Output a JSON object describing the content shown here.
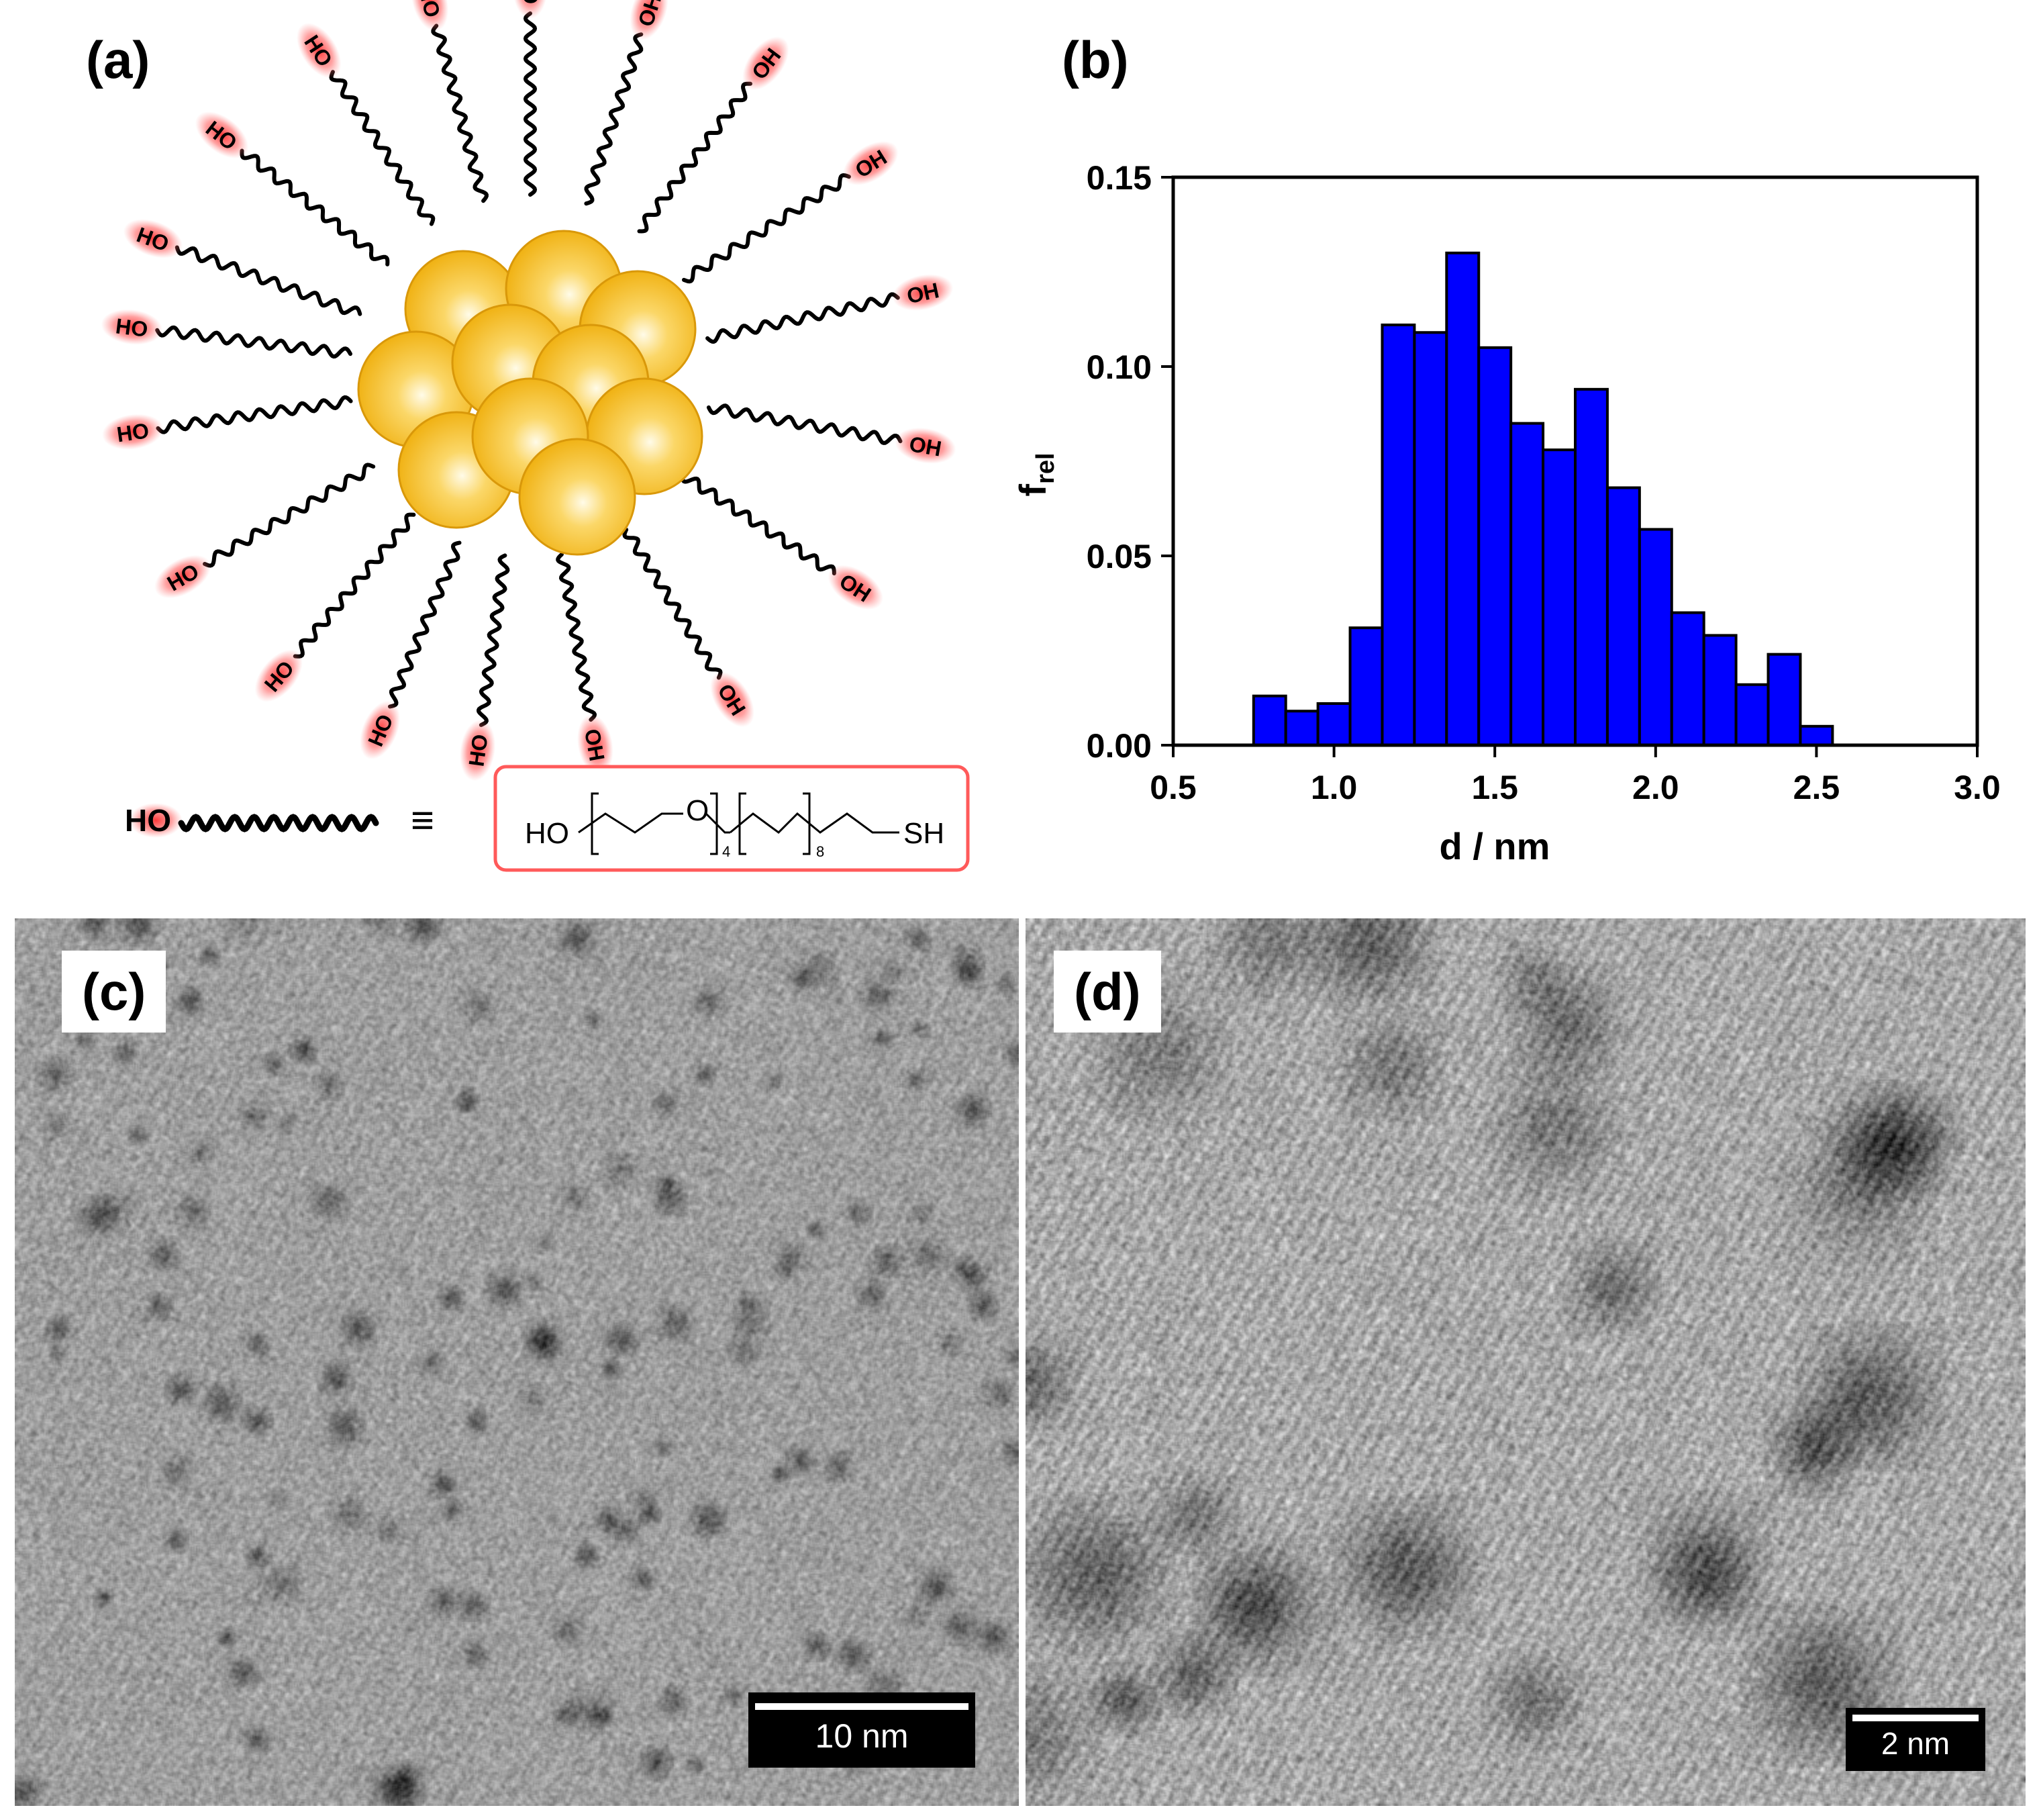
{
  "panels": {
    "a": {
      "label": "(a)",
      "ligand_terminal": "HO",
      "terminal_labels_left": [
        "HO",
        "HO",
        "HO",
        "HO",
        "HO",
        "HO",
        "HO",
        "HO",
        "HO",
        "HO",
        "HO"
      ],
      "terminal_labels_right": [
        "OH",
        "OH",
        "OH",
        "OH",
        "OH",
        "OH",
        "OH",
        "OH"
      ],
      "equivalence_symbol": "≡",
      "formula": {
        "head": "HO",
        "oxygen": "O",
        "repeat_1": "4",
        "repeat_2": "8",
        "tail": "SH"
      }
    },
    "b": {
      "label": "(b)"
    },
    "c": {
      "label": "(c)",
      "scalebar": "10 nm"
    },
    "d": {
      "label": "(d)",
      "scalebar": "2 nm"
    }
  },
  "colors": {
    "bars": "#0000ff",
    "gold": "#f2b10f",
    "gold_highlight": "#fff8d8",
    "hydroxyl": "#ff2f2f"
  },
  "chart_data": {
    "type": "bar",
    "title": "",
    "xlabel": "d / nm",
    "ylabel_main": "f",
    "ylabel_sub": "rel",
    "xlim": [
      0.5,
      3.0
    ],
    "ylim": [
      0.0,
      0.15
    ],
    "xticks": [
      "0.5",
      "1.0",
      "1.5",
      "2.0",
      "2.5",
      "3.0"
    ],
    "yticks": [
      "0.00",
      "0.05",
      "0.10",
      "0.15"
    ],
    "bin_width": 0.1,
    "bin_starts": [
      0.75,
      0.85,
      0.95,
      1.05,
      1.15,
      1.25,
      1.35,
      1.45,
      1.55,
      1.65,
      1.75,
      1.85,
      1.95,
      2.05,
      2.15,
      2.25,
      2.35,
      2.45
    ],
    "values": [
      0.013,
      0.009,
      0.011,
      0.031,
      0.111,
      0.109,
      0.13,
      0.105,
      0.085,
      0.078,
      0.094,
      0.068,
      0.057,
      0.035,
      0.029,
      0.016,
      0.024,
      0.005
    ]
  }
}
